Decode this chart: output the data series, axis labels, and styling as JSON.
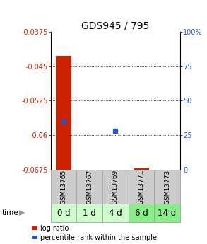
{
  "title": "GDS945 / 795",
  "samples": [
    "GSM13765",
    "GSM13767",
    "GSM13769",
    "GSM13771",
    "GSM13773"
  ],
  "time_labels": [
    "0 d",
    "1 d",
    "4 d",
    "6 d",
    "14 d"
  ],
  "ylim_left": [
    -0.0675,
    -0.0375
  ],
  "ylim_right": [
    0,
    100
  ],
  "yticks_left": [
    -0.0675,
    -0.06,
    -0.0525,
    -0.045,
    -0.0375
  ],
  "yticks_right": [
    0,
    25,
    50,
    75,
    100
  ],
  "log_ratio": [
    -0.0427,
    null,
    null,
    -0.0672,
    null
  ],
  "percentile_rank": [
    35.0,
    null,
    28.0,
    null,
    null
  ],
  "bar_color": "#cc2200",
  "dot_color": "#2255cc",
  "sample_bg": "#cccccc",
  "time_bg_colors": [
    "#ccffcc",
    "#ccffcc",
    "#ccffcc",
    "#88ee88",
    "#88ee88"
  ],
  "ylabel_left_color": "#cc2200",
  "ylabel_right_color": "#2255cc",
  "base_value": -0.0675,
  "title_fontsize": 10,
  "tick_fontsize": 7,
  "sample_fontsize": 6.5,
  "time_fontsize": 8.5
}
